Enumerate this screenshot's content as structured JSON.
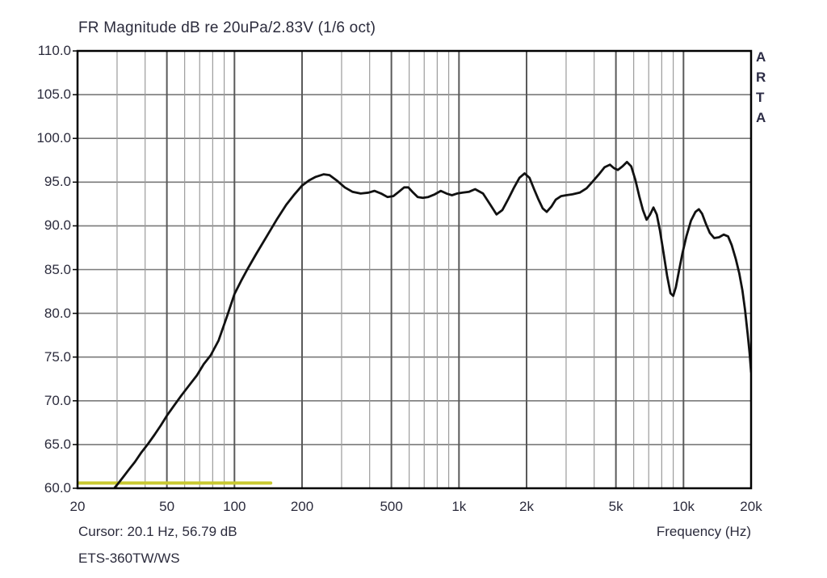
{
  "header": {
    "title": "FR Magnitude dB re 20uPa/2.83V (1/6 oct)"
  },
  "watermark": {
    "text": "A\nR\nT\nA"
  },
  "footer": {
    "cursor_readout": "Cursor: 20.1 Hz, 56.79 dB",
    "device_label": "ETS-360TW/WS",
    "x_axis_label": "Frequency (Hz)"
  },
  "chart_data": {
    "type": "line",
    "title": "FR Magnitude dB re 20uPa/2.83V (1/6 oct)",
    "xlabel": "Frequency (Hz)",
    "ylabel": "dB re 20uPa/2.83V",
    "x_scale": "log",
    "xlim": [
      20,
      20000
    ],
    "ylim": [
      60,
      110
    ],
    "grid": true,
    "legend": "none",
    "cursor": {
      "freq_hz": 20.1,
      "db": 56.79
    },
    "x_ticks": [
      {
        "f": 20,
        "label": "20"
      },
      {
        "f": 50,
        "label": "50"
      },
      {
        "f": 100,
        "label": "100"
      },
      {
        "f": 200,
        "label": "200"
      },
      {
        "f": 500,
        "label": "500"
      },
      {
        "f": 1000,
        "label": "1k"
      },
      {
        "f": 2000,
        "label": "2k"
      },
      {
        "f": 5000,
        "label": "5k"
      },
      {
        "f": 10000,
        "label": "10k"
      },
      {
        "f": 20000,
        "label": "20k"
      }
    ],
    "y_ticks": [
      {
        "v": 110,
        "label": "110.0"
      },
      {
        "v": 105,
        "label": "105.0"
      },
      {
        "v": 100,
        "label": "100.0"
      },
      {
        "v": 95,
        "label": "95.0"
      },
      {
        "v": 90,
        "label": "90.0"
      },
      {
        "v": 85,
        "label": "85.0"
      },
      {
        "v": 80,
        "label": "80.0"
      },
      {
        "v": 75,
        "label": "75.0"
      },
      {
        "v": 70,
        "label": "70.0"
      },
      {
        "v": 65,
        "label": "65.0"
      },
      {
        "v": 60,
        "label": "60.0"
      }
    ],
    "x_gridlines_minor": [
      30,
      40,
      60,
      70,
      80,
      90,
      300,
      400,
      600,
      700,
      800,
      900,
      3000,
      4000,
      6000,
      7000,
      8000,
      9000
    ],
    "x_gridlines_major": [
      50,
      100,
      200,
      500,
      1000,
      2000,
      5000,
      10000
    ],
    "y_gridlines": [
      65,
      70,
      75,
      80,
      85,
      90,
      95,
      100,
      105
    ],
    "colors": {
      "curve": "#111111",
      "marker_line": "#c9c930",
      "grid_minor": "#9c9c9c",
      "grid_major": "#5a5a5a",
      "grid_horizontal": "#7a7a7a",
      "border": "#000000",
      "text": "#2b2b3c"
    },
    "series": [
      {
        "name": "fr-magnitude",
        "color": "#111111",
        "width": 2.8,
        "points": [
          [
            28.5,
            59.7
          ],
          [
            30,
            60.4
          ],
          [
            32,
            61.3
          ],
          [
            34,
            62.2
          ],
          [
            36,
            63.0
          ],
          [
            38.5,
            64.1
          ],
          [
            41,
            65.0
          ],
          [
            44,
            66.1
          ],
          [
            47,
            67.2
          ],
          [
            50,
            68.3
          ],
          [
            54,
            69.5
          ],
          [
            58,
            70.6
          ],
          [
            63,
            71.8
          ],
          [
            68,
            72.9
          ],
          [
            73,
            74.2
          ],
          [
            78.4,
            75.2
          ],
          [
            85,
            76.9
          ],
          [
            93,
            79.8
          ],
          [
            100,
            82.2
          ],
          [
            107,
            83.7
          ],
          [
            114,
            85.0
          ],
          [
            125,
            86.8
          ],
          [
            140,
            88.9
          ],
          [
            155,
            90.8
          ],
          [
            170,
            92.4
          ],
          [
            185,
            93.6
          ],
          [
            200,
            94.6
          ],
          [
            215,
            95.2
          ],
          [
            230,
            95.6
          ],
          [
            250,
            95.9
          ],
          [
            265,
            95.8
          ],
          [
            285,
            95.2
          ],
          [
            310,
            94.4
          ],
          [
            335,
            93.9
          ],
          [
            365,
            93.7
          ],
          [
            395,
            93.8
          ],
          [
            420,
            94.0
          ],
          [
            450,
            93.7
          ],
          [
            480,
            93.3
          ],
          [
            510,
            93.4
          ],
          [
            540,
            93.9
          ],
          [
            570,
            94.4
          ],
          [
            595,
            94.4
          ],
          [
            625,
            93.8
          ],
          [
            655,
            93.3
          ],
          [
            690,
            93.2
          ],
          [
            730,
            93.3
          ],
          [
            780,
            93.6
          ],
          [
            830,
            94.0
          ],
          [
            880,
            93.7
          ],
          [
            930,
            93.5
          ],
          [
            980,
            93.7
          ],
          [
            1040,
            93.8
          ],
          [
            1110,
            93.9
          ],
          [
            1180,
            94.2
          ],
          [
            1280,
            93.7
          ],
          [
            1380,
            92.4
          ],
          [
            1470,
            91.3
          ],
          [
            1560,
            91.8
          ],
          [
            1660,
            93.1
          ],
          [
            1760,
            94.4
          ],
          [
            1860,
            95.5
          ],
          [
            1960,
            96.0
          ],
          [
            2060,
            95.5
          ],
          [
            2160,
            94.2
          ],
          [
            2260,
            93.0
          ],
          [
            2360,
            92.0
          ],
          [
            2460,
            91.6
          ],
          [
            2580,
            92.2
          ],
          [
            2700,
            93.0
          ],
          [
            2850,
            93.4
          ],
          [
            3000,
            93.5
          ],
          [
            3200,
            93.6
          ],
          [
            3450,
            93.8
          ],
          [
            3700,
            94.3
          ],
          [
            3950,
            95.1
          ],
          [
            4200,
            95.9
          ],
          [
            4450,
            96.7
          ],
          [
            4700,
            97.0
          ],
          [
            4900,
            96.6
          ],
          [
            5100,
            96.4
          ],
          [
            5350,
            96.8
          ],
          [
            5600,
            97.3
          ],
          [
            5850,
            96.8
          ],
          [
            6100,
            95.3
          ],
          [
            6350,
            93.4
          ],
          [
            6600,
            91.8
          ],
          [
            6850,
            90.7
          ],
          [
            7100,
            91.3
          ],
          [
            7350,
            92.1
          ],
          [
            7600,
            91.3
          ],
          [
            7850,
            89.5
          ],
          [
            8150,
            86.9
          ],
          [
            8450,
            84.3
          ],
          [
            8750,
            82.3
          ],
          [
            9000,
            82.0
          ],
          [
            9250,
            83.0
          ],
          [
            9550,
            84.9
          ],
          [
            9900,
            86.9
          ],
          [
            10300,
            88.8
          ],
          [
            10800,
            90.6
          ],
          [
            11300,
            91.6
          ],
          [
            11700,
            91.9
          ],
          [
            12100,
            91.4
          ],
          [
            12600,
            90.2
          ],
          [
            13100,
            89.2
          ],
          [
            13700,
            88.6
          ],
          [
            14400,
            88.7
          ],
          [
            15100,
            89.0
          ],
          [
            15800,
            88.8
          ],
          [
            16400,
            87.8
          ],
          [
            17100,
            86.2
          ],
          [
            17700,
            84.6
          ],
          [
            18300,
            82.6
          ],
          [
            18800,
            80.4
          ],
          [
            19300,
            77.7
          ],
          [
            19700,
            75.4
          ],
          [
            20000,
            73.3
          ]
        ]
      },
      {
        "name": "marker-line",
        "color": "#c9c930",
        "width": 4,
        "points": [
          [
            20,
            60.6
          ],
          [
            145,
            60.6
          ]
        ]
      }
    ]
  }
}
